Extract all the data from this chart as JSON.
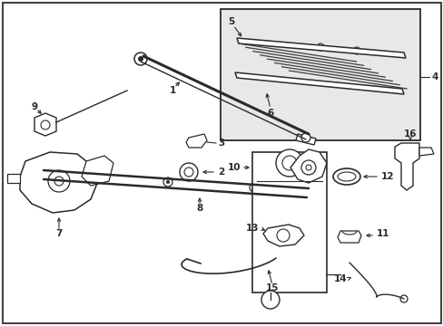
{
  "bg_color": "#ffffff",
  "line_color": "#2a2a2a",
  "fig_width": 4.89,
  "fig_height": 3.6,
  "dpi": 100,
  "inset_gray": "#e8e8e8",
  "label_fontsize": 7.5
}
